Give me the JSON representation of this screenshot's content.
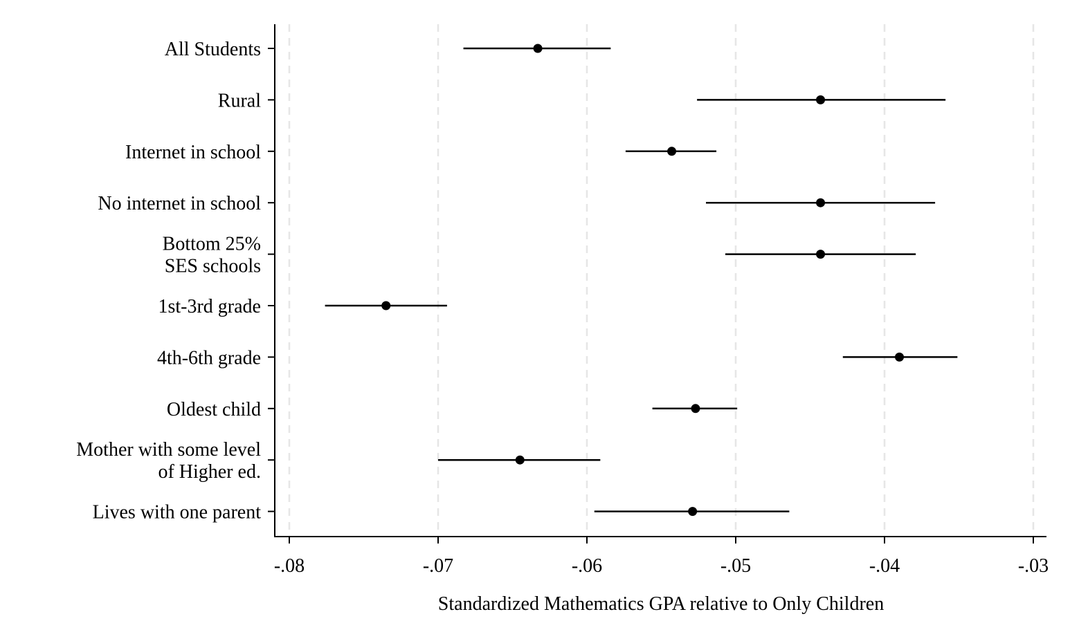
{
  "chart_data": {
    "type": "scatter",
    "subtype": "coefficient-plot-with-confidence-intervals",
    "title": "",
    "xlabel": "Standardized Mathematics GPA relative to Only Children",
    "ylabel": "",
    "xlim": [
      -0.08,
      -0.03
    ],
    "xticks": [
      {
        "value": -0.08,
        "label": "-.08"
      },
      {
        "value": -0.07,
        "label": "-.07"
      },
      {
        "value": -0.06,
        "label": "-.06"
      },
      {
        "value": -0.05,
        "label": "-.05"
      },
      {
        "value": -0.04,
        "label": "-.04"
      },
      {
        "value": -0.03,
        "label": "-.03"
      }
    ],
    "grid": "vertical dashed at x ticks",
    "legend": "none",
    "colors": {
      "marker": "#000000",
      "ci": "#000000",
      "grid": "#e6e6e6",
      "axis": "#000000"
    },
    "rows": [
      {
        "label": [
          "All Students"
        ],
        "estimate": -0.0633,
        "ci_low": -0.0683,
        "ci_high": -0.0584
      },
      {
        "label": [
          "Rural"
        ],
        "estimate": -0.0443,
        "ci_low": -0.0526,
        "ci_high": -0.0359
      },
      {
        "label": [
          "Internet in school"
        ],
        "estimate": -0.0543,
        "ci_low": -0.0574,
        "ci_high": -0.0513
      },
      {
        "label": [
          "No internet in school"
        ],
        "estimate": -0.0443,
        "ci_low": -0.052,
        "ci_high": -0.0366
      },
      {
        "label": [
          "Bottom 25%",
          "SES schools"
        ],
        "estimate": -0.0443,
        "ci_low": -0.0507,
        "ci_high": -0.0379
      },
      {
        "label": [
          "1st-3rd grade"
        ],
        "estimate": -0.0735,
        "ci_low": -0.0776,
        "ci_high": -0.0694
      },
      {
        "label": [
          "4th-6th grade"
        ],
        "estimate": -0.039,
        "ci_low": -0.0428,
        "ci_high": -0.0351
      },
      {
        "label": [
          "Oldest child"
        ],
        "estimate": -0.0527,
        "ci_low": -0.0556,
        "ci_high": -0.0499
      },
      {
        "label": [
          "Mother with some level",
          "of Higher ed."
        ],
        "estimate": -0.0645,
        "ci_low": -0.07,
        "ci_high": -0.0591
      },
      {
        "label": [
          "Lives with one parent"
        ],
        "estimate": -0.0529,
        "ci_low": -0.0595,
        "ci_high": -0.0464
      }
    ]
  }
}
